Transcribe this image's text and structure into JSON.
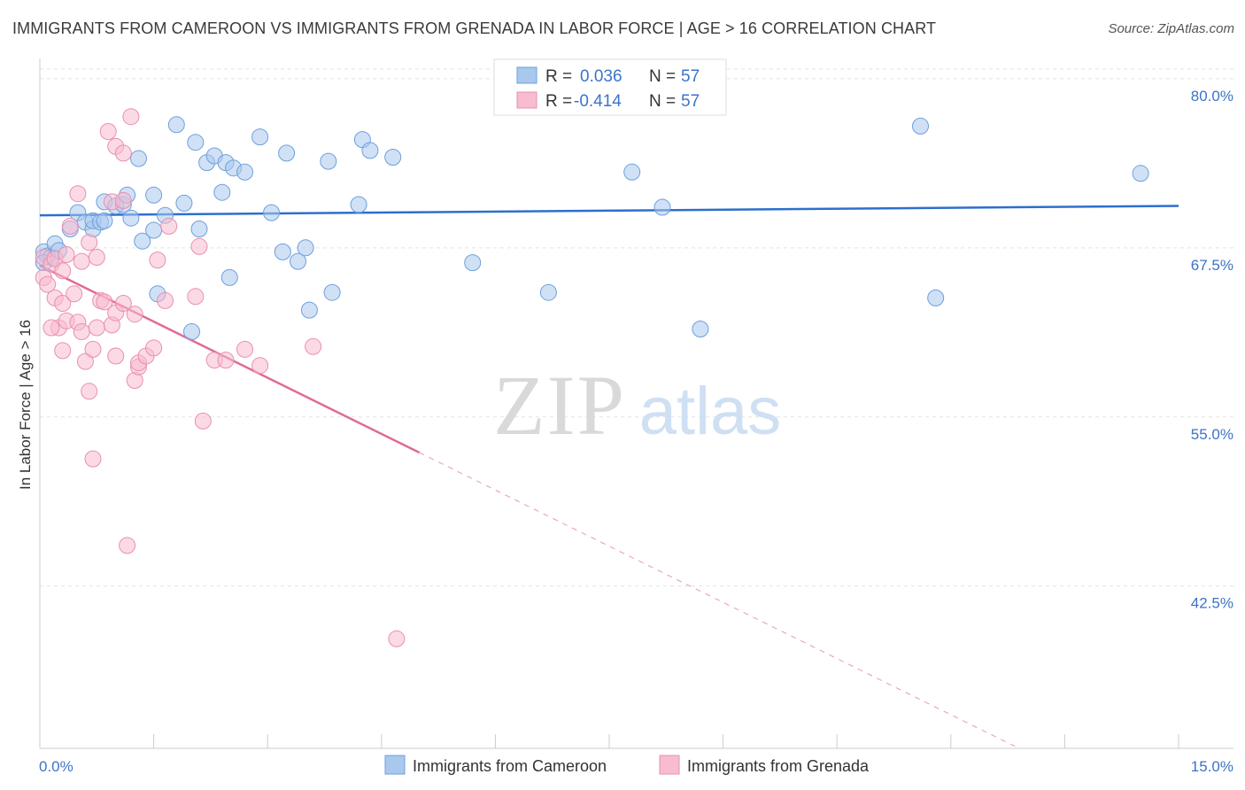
{
  "header": {
    "title": "IMMIGRANTS FROM CAMEROON VS IMMIGRANTS FROM GRENADA IN LABOR FORCE | AGE > 16 CORRELATION CHART",
    "source": "Source: ZipAtlas.com"
  },
  "watermark": {
    "zip": "ZIP",
    "atlas": "atlas"
  },
  "chart_data": {
    "type": "scatter",
    "title": "IMMIGRANTS FROM CAMEROON VS IMMIGRANTS FROM GRENADA IN LABOR FORCE | AGE > 16 CORRELATION CHART",
    "xlabel": "",
    "ylabel": "In Labor Force | Age > 16",
    "xlim": [
      0,
      15
    ],
    "ylim": [
      30.5,
      81.5
    ],
    "x_tick_labels": {
      "min": "0.0%",
      "max": "15.0%"
    },
    "y_ticks": [
      {
        "value": 80.0,
        "label": "80.0%"
      },
      {
        "value": 67.5,
        "label": "67.5%"
      },
      {
        "value": 55.0,
        "label": "55.0%"
      },
      {
        "value": 42.5,
        "label": "42.5%"
      }
    ],
    "legend": {
      "placement": "top-center",
      "rows": [
        {
          "r_label": "R =",
          "r_value": "0.036",
          "n_label": "N =",
          "n_value": "57"
        },
        {
          "r_label": "R =",
          "r_value": "-0.414",
          "n_label": "N =",
          "n_value": "57"
        }
      ]
    },
    "series": [
      {
        "name": "Immigrants from Cameroon",
        "color": "#a9c8ee",
        "stroke": "#6d9fdc",
        "trend_color": "#2d6fcc",
        "trend": {
          "x0": 0.0,
          "y0": 69.9,
          "x1": 15.0,
          "y1": 70.6,
          "dashed_from": null
        },
        "points": [
          [
            0.05,
            67.2
          ],
          [
            0.1,
            66.9
          ],
          [
            0.15,
            66.8
          ],
          [
            0.2,
            67.8
          ],
          [
            0.25,
            67.3
          ],
          [
            0.4,
            68.9
          ],
          [
            0.5,
            70.1
          ],
          [
            0.6,
            69.4
          ],
          [
            0.7,
            68.9
          ],
          [
            0.7,
            69.5
          ],
          [
            0.8,
            69.4
          ],
          [
            0.85,
            69.5
          ],
          [
            0.85,
            70.9
          ],
          [
            1.0,
            70.6
          ],
          [
            1.1,
            70.7
          ],
          [
            1.15,
            71.4
          ],
          [
            1.2,
            69.7
          ],
          [
            1.3,
            74.1
          ],
          [
            1.35,
            68.0
          ],
          [
            1.5,
            68.8
          ],
          [
            1.5,
            71.4
          ],
          [
            1.55,
            64.1
          ],
          [
            1.65,
            69.9
          ],
          [
            1.8,
            76.6
          ],
          [
            1.9,
            70.8
          ],
          [
            2.0,
            61.3
          ],
          [
            2.05,
            75.3
          ],
          [
            2.1,
            68.9
          ],
          [
            2.2,
            73.8
          ],
          [
            2.3,
            74.3
          ],
          [
            2.4,
            71.6
          ],
          [
            2.45,
            73.8
          ],
          [
            2.5,
            65.3
          ],
          [
            2.55,
            73.4
          ],
          [
            2.7,
            73.1
          ],
          [
            2.9,
            75.7
          ],
          [
            3.05,
            70.1
          ],
          [
            3.2,
            67.2
          ],
          [
            3.25,
            74.5
          ],
          [
            3.4,
            66.5
          ],
          [
            3.5,
            67.5
          ],
          [
            3.55,
            62.9
          ],
          [
            3.8,
            73.9
          ],
          [
            3.85,
            64.2
          ],
          [
            4.2,
            70.7
          ],
          [
            4.25,
            75.5
          ],
          [
            4.35,
            74.7
          ],
          [
            4.65,
            74.2
          ],
          [
            5.7,
            66.4
          ],
          [
            6.7,
            64.2
          ],
          [
            7.8,
            73.1
          ],
          [
            8.2,
            70.5
          ],
          [
            8.7,
            61.5
          ],
          [
            11.6,
            76.5
          ],
          [
            11.8,
            63.8
          ],
          [
            14.5,
            73.0
          ],
          [
            0.05,
            66.4
          ]
        ]
      },
      {
        "name": "Immigrants from Grenada",
        "color": "#f7bcd0",
        "stroke": "#ea8fb0",
        "trend_color": "#e06a96",
        "trend": {
          "x0": 0.0,
          "y0": 66.2,
          "x1": 12.9,
          "y1": 30.5,
          "dashed_from": 5.0
        },
        "points": [
          [
            0.05,
            65.3
          ],
          [
            0.05,
            66.8
          ],
          [
            0.1,
            64.8
          ],
          [
            0.15,
            66.3
          ],
          [
            0.2,
            66.7
          ],
          [
            0.2,
            63.8
          ],
          [
            0.25,
            61.6
          ],
          [
            0.3,
            65.8
          ],
          [
            0.3,
            59.9
          ],
          [
            0.3,
            63.4
          ],
          [
            0.35,
            62.1
          ],
          [
            0.35,
            67.0
          ],
          [
            0.4,
            69.1
          ],
          [
            0.45,
            64.1
          ],
          [
            0.5,
            71.5
          ],
          [
            0.5,
            62.0
          ],
          [
            0.55,
            61.3
          ],
          [
            0.55,
            66.5
          ],
          [
            0.6,
            59.1
          ],
          [
            0.65,
            67.9
          ],
          [
            0.65,
            56.9
          ],
          [
            0.7,
            60.0
          ],
          [
            0.7,
            51.9
          ],
          [
            0.75,
            66.8
          ],
          [
            0.75,
            61.6
          ],
          [
            0.8,
            63.6
          ],
          [
            0.85,
            63.5
          ],
          [
            0.9,
            76.1
          ],
          [
            0.95,
            70.9
          ],
          [
            0.95,
            61.8
          ],
          [
            1.0,
            59.5
          ],
          [
            1.0,
            62.7
          ],
          [
            1.0,
            75.0
          ],
          [
            1.1,
            71.0
          ],
          [
            1.1,
            63.4
          ],
          [
            1.1,
            74.5
          ],
          [
            1.15,
            45.5
          ],
          [
            1.2,
            77.2
          ],
          [
            1.25,
            57.7
          ],
          [
            1.25,
            62.6
          ],
          [
            1.3,
            58.7
          ],
          [
            1.3,
            59.0
          ],
          [
            1.4,
            59.5
          ],
          [
            1.55,
            66.6
          ],
          [
            1.5,
            60.1
          ],
          [
            1.65,
            63.6
          ],
          [
            1.7,
            69.1
          ],
          [
            2.05,
            63.9
          ],
          [
            2.1,
            67.6
          ],
          [
            2.15,
            54.7
          ],
          [
            2.3,
            59.2
          ],
          [
            2.45,
            59.2
          ],
          [
            2.7,
            60.0
          ],
          [
            2.9,
            58.8
          ],
          [
            3.6,
            60.2
          ],
          [
            4.7,
            38.6
          ],
          [
            0.15,
            61.6
          ]
        ]
      }
    ]
  }
}
